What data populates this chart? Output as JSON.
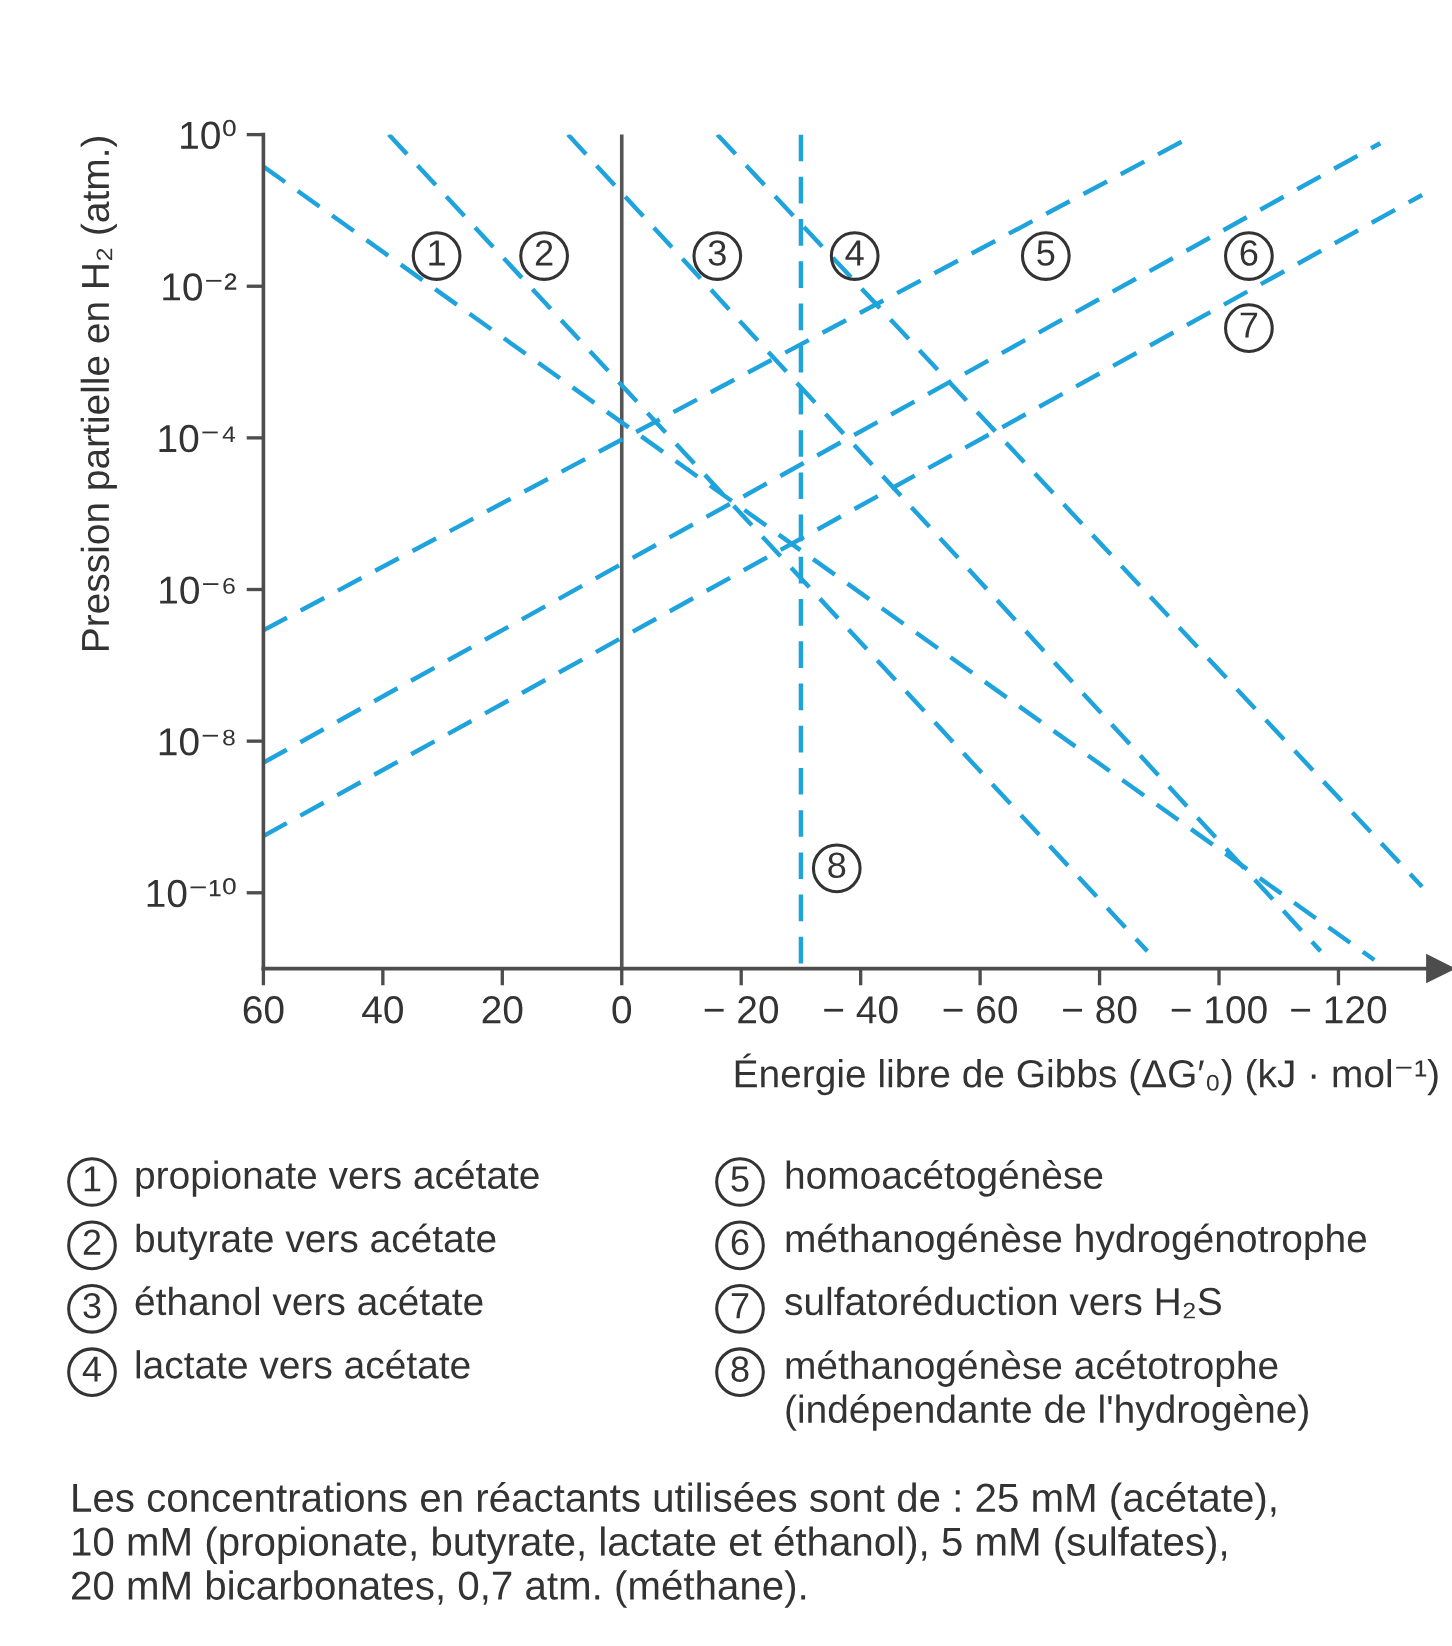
{
  "chart_data": {
    "type": "line",
    "xlabel": "Énergie libre de Gibbs (ΔG′₀) (kJ · mol⁻¹)",
    "ylabel": "Pression partielle en H₂ (atm.)",
    "series": [
      {
        "color": "#1fa3dc",
        "x": [
          60,
          -126
        ],
        "values": [
          0.38,
          1.3e-11
        ]
      },
      {
        "color": "#1fa3dc",
        "x": [
          39,
          -88
        ],
        "values": [
          1,
          1.7e-11
        ]
      },
      {
        "color": "#1fa3dc",
        "x": [
          9,
          -117
        ],
        "values": [
          1,
          1.7e-11
        ]
      },
      {
        "color": "#1fa3dc",
        "x": [
          -16,
          -134
        ],
        "values": [
          1,
          1.2e-10
        ]
      },
      {
        "color": "#1fa3dc",
        "x": [
          60,
          -96
        ],
        "values": [
          2.9e-07,
          1
        ]
      },
      {
        "color": "#1fa3dc",
        "x": [
          60,
          -127
        ],
        "values": [
          5.2e-09,
          0.77
        ]
      },
      {
        "color": "#1fa3dc",
        "x": [
          60,
          -134
        ],
        "values": [
          5.6e-10,
          0.16
        ]
      },
      {
        "color": "#1fa3dc",
        "x": [
          -30,
          -30
        ],
        "values": [
          1,
          1e-11
        ]
      }
    ],
    "xlim": [
      60,
      -137
    ],
    "ylim": [
      1e-11,
      1
    ],
    "xticks": [
      60,
      40,
      20,
      0,
      {
        "value": -20,
        "label": "− 20"
      },
      {
        "value": -40,
        "label": "− 40"
      },
      {
        "value": -60,
        "label": "− 60"
      },
      {
        "value": -80,
        "label": "− 80"
      },
      {
        "value": -100,
        "label": "− 100"
      },
      {
        "value": -120,
        "label": "− 120"
      }
    ],
    "yticks": [
      {
        "value": 1,
        "label": "10⁰"
      },
      {
        "value": 0.01,
        "label": "10⁻²"
      },
      {
        "value": 0.0001,
        "label": "10⁻⁴"
      },
      {
        "value": 1e-06,
        "label": "10⁻⁶"
      },
      {
        "value": 1e-08,
        "label": "10⁻⁸"
      },
      {
        "value": 1e-10,
        "label": "10⁻¹⁰"
      }
    ],
    "log": "y",
    "line_style": "dashed",
    "ref_lines": [
      {
        "axis": "x",
        "value": 0,
        "color": "#555555",
        "line_style": "solid"
      }
    ],
    "annotations": [
      {
        "text": "1",
        "x": 31,
        "y": 0.025
      },
      {
        "text": "2",
        "x": 13,
        "y": 0.025
      },
      {
        "text": "3",
        "x": -16,
        "y": 0.025
      },
      {
        "text": "4",
        "x": -39,
        "y": 0.025
      },
      {
        "text": "5",
        "x": -71,
        "y": 0.025
      },
      {
        "text": "6",
        "x": -105,
        "y": 0.025
      },
      {
        "text": "7",
        "x": -105,
        "y": 0.0028
      },
      {
        "text": "8",
        "x": -36,
        "y": 2.1e-10
      },
      "propionate vers acétate",
      "butyrate vers acétate",
      "éthanol vers acétate",
      "lactate vers acétate",
      "homoacétogénèse",
      "méthanogénèse hydrogénotrophe",
      "sulfatoréduction vers H₂S",
      "méthanogénèse acétotrophe\n(indépendante de l'hydrogène)",
      "Les concentrations en réactants utilisées sont de : 25 mM (acétate),\n10 mM (propionate, butyrate, lactate et éthanol), 5 mM (sulfates),\n20 mM bicarbonates, 0,7 atm. (méthane)."
    ]
  }
}
